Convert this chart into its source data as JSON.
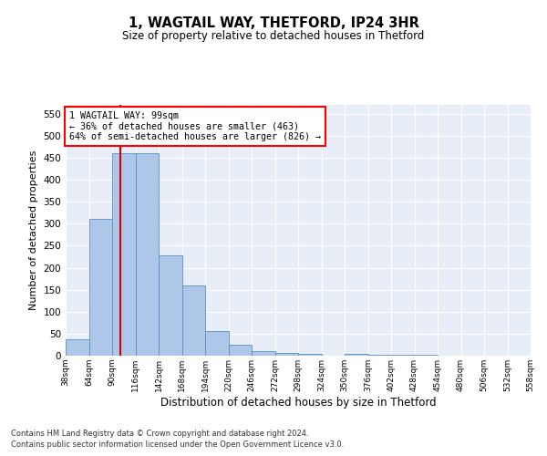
{
  "title_line1": "1, WAGTAIL WAY, THETFORD, IP24 3HR",
  "title_line2": "Size of property relative to detached houses in Thetford",
  "xlabel": "Distribution of detached houses by size in Thetford",
  "ylabel": "Number of detached properties",
  "annotation_title": "1 WAGTAIL WAY: 99sqm",
  "annotation_line2": "← 36% of detached houses are smaller (463)",
  "annotation_line3": "64% of semi-detached houses are larger (826) →",
  "property_size": 99,
  "bin_edges": [
    38,
    64,
    90,
    116,
    142,
    168,
    194,
    220,
    246,
    272,
    298,
    324,
    350,
    376,
    402,
    428,
    454,
    480,
    506,
    532,
    558
  ],
  "bar_heights": [
    38,
    310,
    460,
    460,
    228,
    160,
    57,
    25,
    10,
    7,
    5,
    0,
    5,
    3,
    3,
    2,
    0,
    0,
    1,
    0,
    1
  ],
  "bar_color": "#aec6e8",
  "bar_edge_color": "#5a8fc0",
  "vline_color": "#cc0000",
  "vline_x": 99,
  "ylim": [
    0,
    570
  ],
  "yticks": [
    0,
    50,
    100,
    150,
    200,
    250,
    300,
    350,
    400,
    450,
    500,
    550
  ],
  "background_color": "#ffffff",
  "plot_background_color": "#e8eef8",
  "grid_color": "#ffffff",
  "footer_line1": "Contains HM Land Registry data © Crown copyright and database right 2024.",
  "footer_line2": "Contains public sector information licensed under the Open Government Licence v3.0."
}
